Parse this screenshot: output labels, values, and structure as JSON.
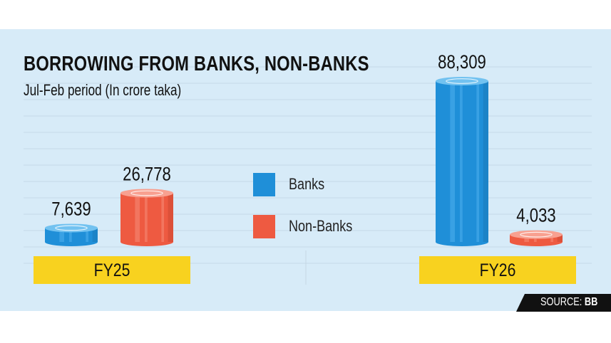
{
  "chart_data": {
    "type": "bar",
    "title": "BORROWING FROM BANKS, NON-BANKS",
    "subtitle": "Jul-Feb period (In crore taka)",
    "categories": [
      "FY25",
      "FY26"
    ],
    "series": [
      {
        "name": "Banks",
        "values": [
          7639,
          88309
        ],
        "labels": [
          "7,639",
          "88,309"
        ]
      },
      {
        "name": "Non-Banks",
        "values": [
          26778,
          4033
        ],
        "labels": [
          "26,778",
          "4,033"
        ]
      }
    ],
    "legend_position": "center",
    "grid": true,
    "colors": {
      "banks": "#1f8fd8",
      "non_banks": "#ee5a41",
      "band": "#f8d21f",
      "background": "#d7ebf8"
    }
  },
  "source": {
    "label": "SOURCE:",
    "value": "BB"
  }
}
